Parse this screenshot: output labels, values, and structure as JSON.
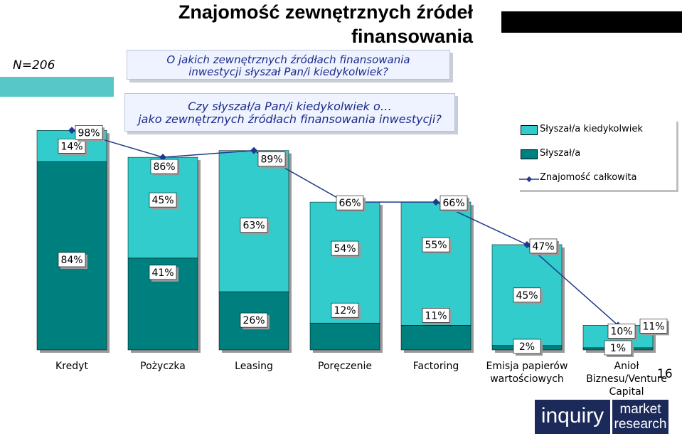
{
  "header": {
    "title": "Znajomość zewnętrznych źródeł finansowania",
    "sample_size": "N=206"
  },
  "questions": {
    "q1_line1": "O jakich zewnętrznych źródłach finansowania",
    "q1_line2": "inwestycji słyszał Pan/i kiedykolwiek?",
    "q2_line1": "Czy słyszał/a Pan/i kiedykolwiek o…",
    "q2_line2": "jako zewnętrznych źródłach finansowania inwestycji?"
  },
  "page_number": "16",
  "logo": {
    "left": "inquiry",
    "right_line1": "market",
    "right_line2": "research"
  },
  "colors": {
    "slyszal": "#007f7f",
    "kiedykolwiek": "#33cccc",
    "line": "#1f3a8a"
  },
  "chart_data": {
    "type": "bar",
    "stacked": true,
    "categories": [
      "Kredyt",
      "Pożyczka",
      "Leasing",
      "Poręczenie",
      "Factoring",
      "Emisja papierów wartościowych",
      "Anioł Biznesu/Venture Capital"
    ],
    "category_lines": [
      [
        "Kredyt"
      ],
      [
        "Pożyczka"
      ],
      [
        "Leasing"
      ],
      [
        "Poręczenie"
      ],
      [
        "Factoring"
      ],
      [
        "Emisja papierów",
        "wartościowych"
      ],
      [
        "Anioł",
        "Biznesu/Venture",
        "Capital"
      ]
    ],
    "ylim": [
      0,
      100
    ],
    "series": [
      {
        "name": "Słyszał/a",
        "values": [
          84,
          41,
          26,
          12,
          11,
          2,
          1
        ],
        "labels": [
          "84%",
          "41%",
          "26%",
          "12%",
          "11%",
          "2%",
          "1%"
        ]
      },
      {
        "name": "Słyszał/a kiedykolwiek",
        "values": [
          14,
          45,
          63,
          54,
          55,
          45,
          10
        ],
        "labels": [
          "14%",
          "45%",
          "63%",
          "54%",
          "55%",
          "45%",
          "10%"
        ]
      }
    ],
    "line": {
      "name": "Znajomość całkowita",
      "values": [
        98,
        86,
        89,
        66,
        66,
        47,
        11
      ],
      "labels": [
        "98%",
        "86%",
        "89%",
        "66%",
        "66%",
        "47%",
        "11%"
      ]
    },
    "legend": {
      "position": "right",
      "items": [
        "Słyszał/a kiedykolwiek",
        "Słyszał/a",
        "Znajomość całkowita"
      ]
    }
  }
}
